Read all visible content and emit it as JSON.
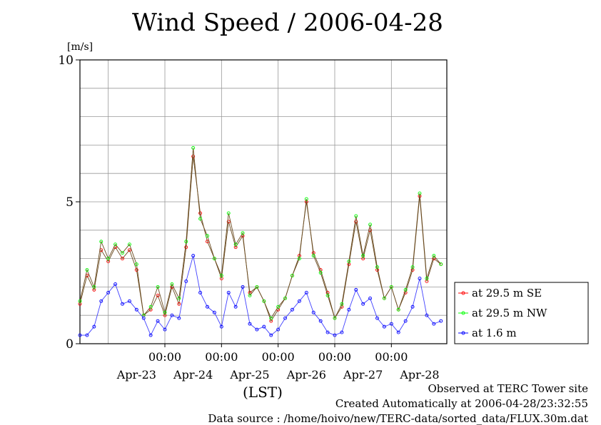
{
  "title": "Wind Speed / 2006-04-28",
  "notes": {
    "observed": "Observed at TERC Tower site",
    "created": "Created Automatically at 2006-04-28/23:32:55",
    "source": "Data source : /home/hoivo/new/TERC-data/sorted_data/FLUX.30m.dat"
  },
  "chart_data": {
    "type": "line",
    "title": "Wind Speed / 2006-04-28",
    "xlabel": "(LST)",
    "ylabel": "[m/s]",
    "ylim": [
      0,
      10
    ],
    "yticks": [
      0,
      5,
      10
    ],
    "xlim": [
      "2006-04-22 12:00",
      "2006-04-28 23:30"
    ],
    "x_time_ticks": [
      "00:00",
      "00:00",
      "00:00",
      "00:00",
      "00:00"
    ],
    "x_date_labels": [
      "Apr-23",
      "Apr-24",
      "Apr-25",
      "Apr-26",
      "Apr-27",
      "Apr-28"
    ],
    "grid": true,
    "legend_position": "right",
    "series": [
      {
        "name": "at 29.5 m SE",
        "color": "#ff0000",
        "points": [
          [
            "2006-04-22 12:00",
            1.4
          ],
          [
            "2006-04-22 15:00",
            2.4
          ],
          [
            "2006-04-22 18:00",
            1.9
          ],
          [
            "2006-04-22 21:00",
            3.3
          ],
          [
            "2006-04-23 00:00",
            2.9
          ],
          [
            "2006-04-23 03:00",
            3.4
          ],
          [
            "2006-04-23 06:00",
            3.0
          ],
          [
            "2006-04-23 09:00",
            3.3
          ],
          [
            "2006-04-23 12:00",
            2.6
          ],
          [
            "2006-04-23 15:00",
            1.0
          ],
          [
            "2006-04-23 18:00",
            1.2
          ],
          [
            "2006-04-23 21:00",
            1.7
          ],
          [
            "2006-04-24 00:00",
            1.0
          ],
          [
            "2006-04-24 03:00",
            2.0
          ],
          [
            "2006-04-24 06:00",
            1.4
          ],
          [
            "2006-04-24 09:00",
            3.4
          ],
          [
            "2006-04-24 12:00",
            6.6
          ],
          [
            "2006-04-24 15:00",
            4.6
          ],
          [
            "2006-04-24 18:00",
            3.6
          ],
          [
            "2006-04-24 21:00",
            3.0
          ],
          [
            "2006-04-25 00:00",
            2.3
          ],
          [
            "2006-04-25 03:00",
            4.3
          ],
          [
            "2006-04-25 06:00",
            3.4
          ],
          [
            "2006-04-25 09:00",
            3.8
          ],
          [
            "2006-04-25 12:00",
            1.8
          ],
          [
            "2006-04-25 15:00",
            2.0
          ],
          [
            "2006-04-25 18:00",
            1.5
          ],
          [
            "2006-04-25 21:00",
            0.8
          ],
          [
            "2006-04-26 00:00",
            1.2
          ],
          [
            "2006-04-26 03:00",
            1.6
          ],
          [
            "2006-04-26 06:00",
            2.4
          ],
          [
            "2006-04-26 09:00",
            3.1
          ],
          [
            "2006-04-26 12:00",
            5.0
          ],
          [
            "2006-04-26 15:00",
            3.2
          ],
          [
            "2006-04-26 18:00",
            2.6
          ],
          [
            "2006-04-26 21:00",
            1.8
          ],
          [
            "2006-04-27 00:00",
            0.9
          ],
          [
            "2006-04-27 03:00",
            1.3
          ],
          [
            "2006-04-27 06:00",
            2.8
          ],
          [
            "2006-04-27 09:00",
            4.3
          ],
          [
            "2006-04-27 12:00",
            3.0
          ],
          [
            "2006-04-27 15:00",
            4.0
          ],
          [
            "2006-04-27 18:00",
            2.6
          ],
          [
            "2006-04-27 21:00",
            1.6
          ],
          [
            "2006-04-28 00:00",
            2.0
          ],
          [
            "2006-04-28 03:00",
            1.2
          ],
          [
            "2006-04-28 06:00",
            1.8
          ],
          [
            "2006-04-28 09:00",
            2.6
          ],
          [
            "2006-04-28 12:00",
            5.2
          ],
          [
            "2006-04-28 15:00",
            2.2
          ],
          [
            "2006-04-28 18:00",
            3.0
          ],
          [
            "2006-04-28 21:00",
            2.8
          ]
        ]
      },
      {
        "name": "at 29.5 m NW",
        "color": "#00ff00",
        "points": [
          [
            "2006-04-22 12:00",
            1.5
          ],
          [
            "2006-04-22 15:00",
            2.6
          ],
          [
            "2006-04-22 18:00",
            2.0
          ],
          [
            "2006-04-22 21:00",
            3.6
          ],
          [
            "2006-04-23 00:00",
            3.0
          ],
          [
            "2006-04-23 03:00",
            3.5
          ],
          [
            "2006-04-23 06:00",
            3.2
          ],
          [
            "2006-04-23 09:00",
            3.5
          ],
          [
            "2006-04-23 12:00",
            2.8
          ],
          [
            "2006-04-23 15:00",
            1.0
          ],
          [
            "2006-04-23 18:00",
            1.3
          ],
          [
            "2006-04-23 21:00",
            2.0
          ],
          [
            "2006-04-24 00:00",
            1.1
          ],
          [
            "2006-04-24 03:00",
            2.1
          ],
          [
            "2006-04-24 06:00",
            1.6
          ],
          [
            "2006-04-24 09:00",
            3.6
          ],
          [
            "2006-04-24 12:00",
            6.9
          ],
          [
            "2006-04-24 15:00",
            4.4
          ],
          [
            "2006-04-24 18:00",
            3.8
          ],
          [
            "2006-04-24 21:00",
            3.0
          ],
          [
            "2006-04-25 00:00",
            2.4
          ],
          [
            "2006-04-25 03:00",
            4.6
          ],
          [
            "2006-04-25 06:00",
            3.5
          ],
          [
            "2006-04-25 09:00",
            3.9
          ],
          [
            "2006-04-25 12:00",
            1.7
          ],
          [
            "2006-04-25 15:00",
            2.0
          ],
          [
            "2006-04-25 18:00",
            1.5
          ],
          [
            "2006-04-25 21:00",
            0.9
          ],
          [
            "2006-04-26 00:00",
            1.3
          ],
          [
            "2006-04-26 03:00",
            1.6
          ],
          [
            "2006-04-26 06:00",
            2.4
          ],
          [
            "2006-04-26 09:00",
            3.0
          ],
          [
            "2006-04-26 12:00",
            5.1
          ],
          [
            "2006-04-26 15:00",
            3.1
          ],
          [
            "2006-04-26 18:00",
            2.5
          ],
          [
            "2006-04-26 21:00",
            1.7
          ],
          [
            "2006-04-27 00:00",
            0.9
          ],
          [
            "2006-04-27 03:00",
            1.4
          ],
          [
            "2006-04-27 06:00",
            2.9
          ],
          [
            "2006-04-27 09:00",
            4.5
          ],
          [
            "2006-04-27 12:00",
            3.1
          ],
          [
            "2006-04-27 15:00",
            4.2
          ],
          [
            "2006-04-27 18:00",
            2.7
          ],
          [
            "2006-04-27 21:00",
            1.6
          ],
          [
            "2006-04-28 00:00",
            2.0
          ],
          [
            "2006-04-28 03:00",
            1.2
          ],
          [
            "2006-04-28 06:00",
            1.9
          ],
          [
            "2006-04-28 09:00",
            2.7
          ],
          [
            "2006-04-28 12:00",
            5.3
          ],
          [
            "2006-04-28 15:00",
            2.3
          ],
          [
            "2006-04-28 18:00",
            3.1
          ],
          [
            "2006-04-28 21:00",
            2.8
          ]
        ]
      },
      {
        "name": "at 1.6 m",
        "color": "#0000ff",
        "points": [
          [
            "2006-04-22 12:00",
            0.3
          ],
          [
            "2006-04-22 15:00",
            0.3
          ],
          [
            "2006-04-22 18:00",
            0.6
          ],
          [
            "2006-04-22 21:00",
            1.5
          ],
          [
            "2006-04-23 00:00",
            1.8
          ],
          [
            "2006-04-23 03:00",
            2.1
          ],
          [
            "2006-04-23 06:00",
            1.4
          ],
          [
            "2006-04-23 09:00",
            1.5
          ],
          [
            "2006-04-23 12:00",
            1.2
          ],
          [
            "2006-04-23 15:00",
            0.9
          ],
          [
            "2006-04-23 18:00",
            0.3
          ],
          [
            "2006-04-23 21:00",
            0.8
          ],
          [
            "2006-04-24 00:00",
            0.5
          ],
          [
            "2006-04-24 03:00",
            1.0
          ],
          [
            "2006-04-24 06:00",
            0.9
          ],
          [
            "2006-04-24 09:00",
            2.2
          ],
          [
            "2006-04-24 12:00",
            3.1
          ],
          [
            "2006-04-24 15:00",
            1.8
          ],
          [
            "2006-04-24 18:00",
            1.3
          ],
          [
            "2006-04-24 21:00",
            1.1
          ],
          [
            "2006-04-25 00:00",
            0.6
          ],
          [
            "2006-04-25 03:00",
            1.8
          ],
          [
            "2006-04-25 06:00",
            1.3
          ],
          [
            "2006-04-25 09:00",
            2.0
          ],
          [
            "2006-04-25 12:00",
            0.7
          ],
          [
            "2006-04-25 15:00",
            0.5
          ],
          [
            "2006-04-25 18:00",
            0.6
          ],
          [
            "2006-04-25 21:00",
            0.3
          ],
          [
            "2006-04-26 00:00",
            0.5
          ],
          [
            "2006-04-26 03:00",
            0.9
          ],
          [
            "2006-04-26 06:00",
            1.2
          ],
          [
            "2006-04-26 09:00",
            1.5
          ],
          [
            "2006-04-26 12:00",
            1.8
          ],
          [
            "2006-04-26 15:00",
            1.1
          ],
          [
            "2006-04-26 18:00",
            0.8
          ],
          [
            "2006-04-26 21:00",
            0.4
          ],
          [
            "2006-04-27 00:00",
            0.3
          ],
          [
            "2006-04-27 03:00",
            0.4
          ],
          [
            "2006-04-27 06:00",
            1.2
          ],
          [
            "2006-04-27 09:00",
            1.9
          ],
          [
            "2006-04-27 12:00",
            1.4
          ],
          [
            "2006-04-27 15:00",
            1.6
          ],
          [
            "2006-04-27 18:00",
            0.9
          ],
          [
            "2006-04-27 21:00",
            0.6
          ],
          [
            "2006-04-28 00:00",
            0.7
          ],
          [
            "2006-04-28 03:00",
            0.4
          ],
          [
            "2006-04-28 06:00",
            0.8
          ],
          [
            "2006-04-28 09:00",
            1.3
          ],
          [
            "2006-04-28 12:00",
            2.3
          ],
          [
            "2006-04-28 15:00",
            1.0
          ],
          [
            "2006-04-28 18:00",
            0.7
          ],
          [
            "2006-04-28 21:00",
            0.8
          ]
        ]
      }
    ]
  }
}
